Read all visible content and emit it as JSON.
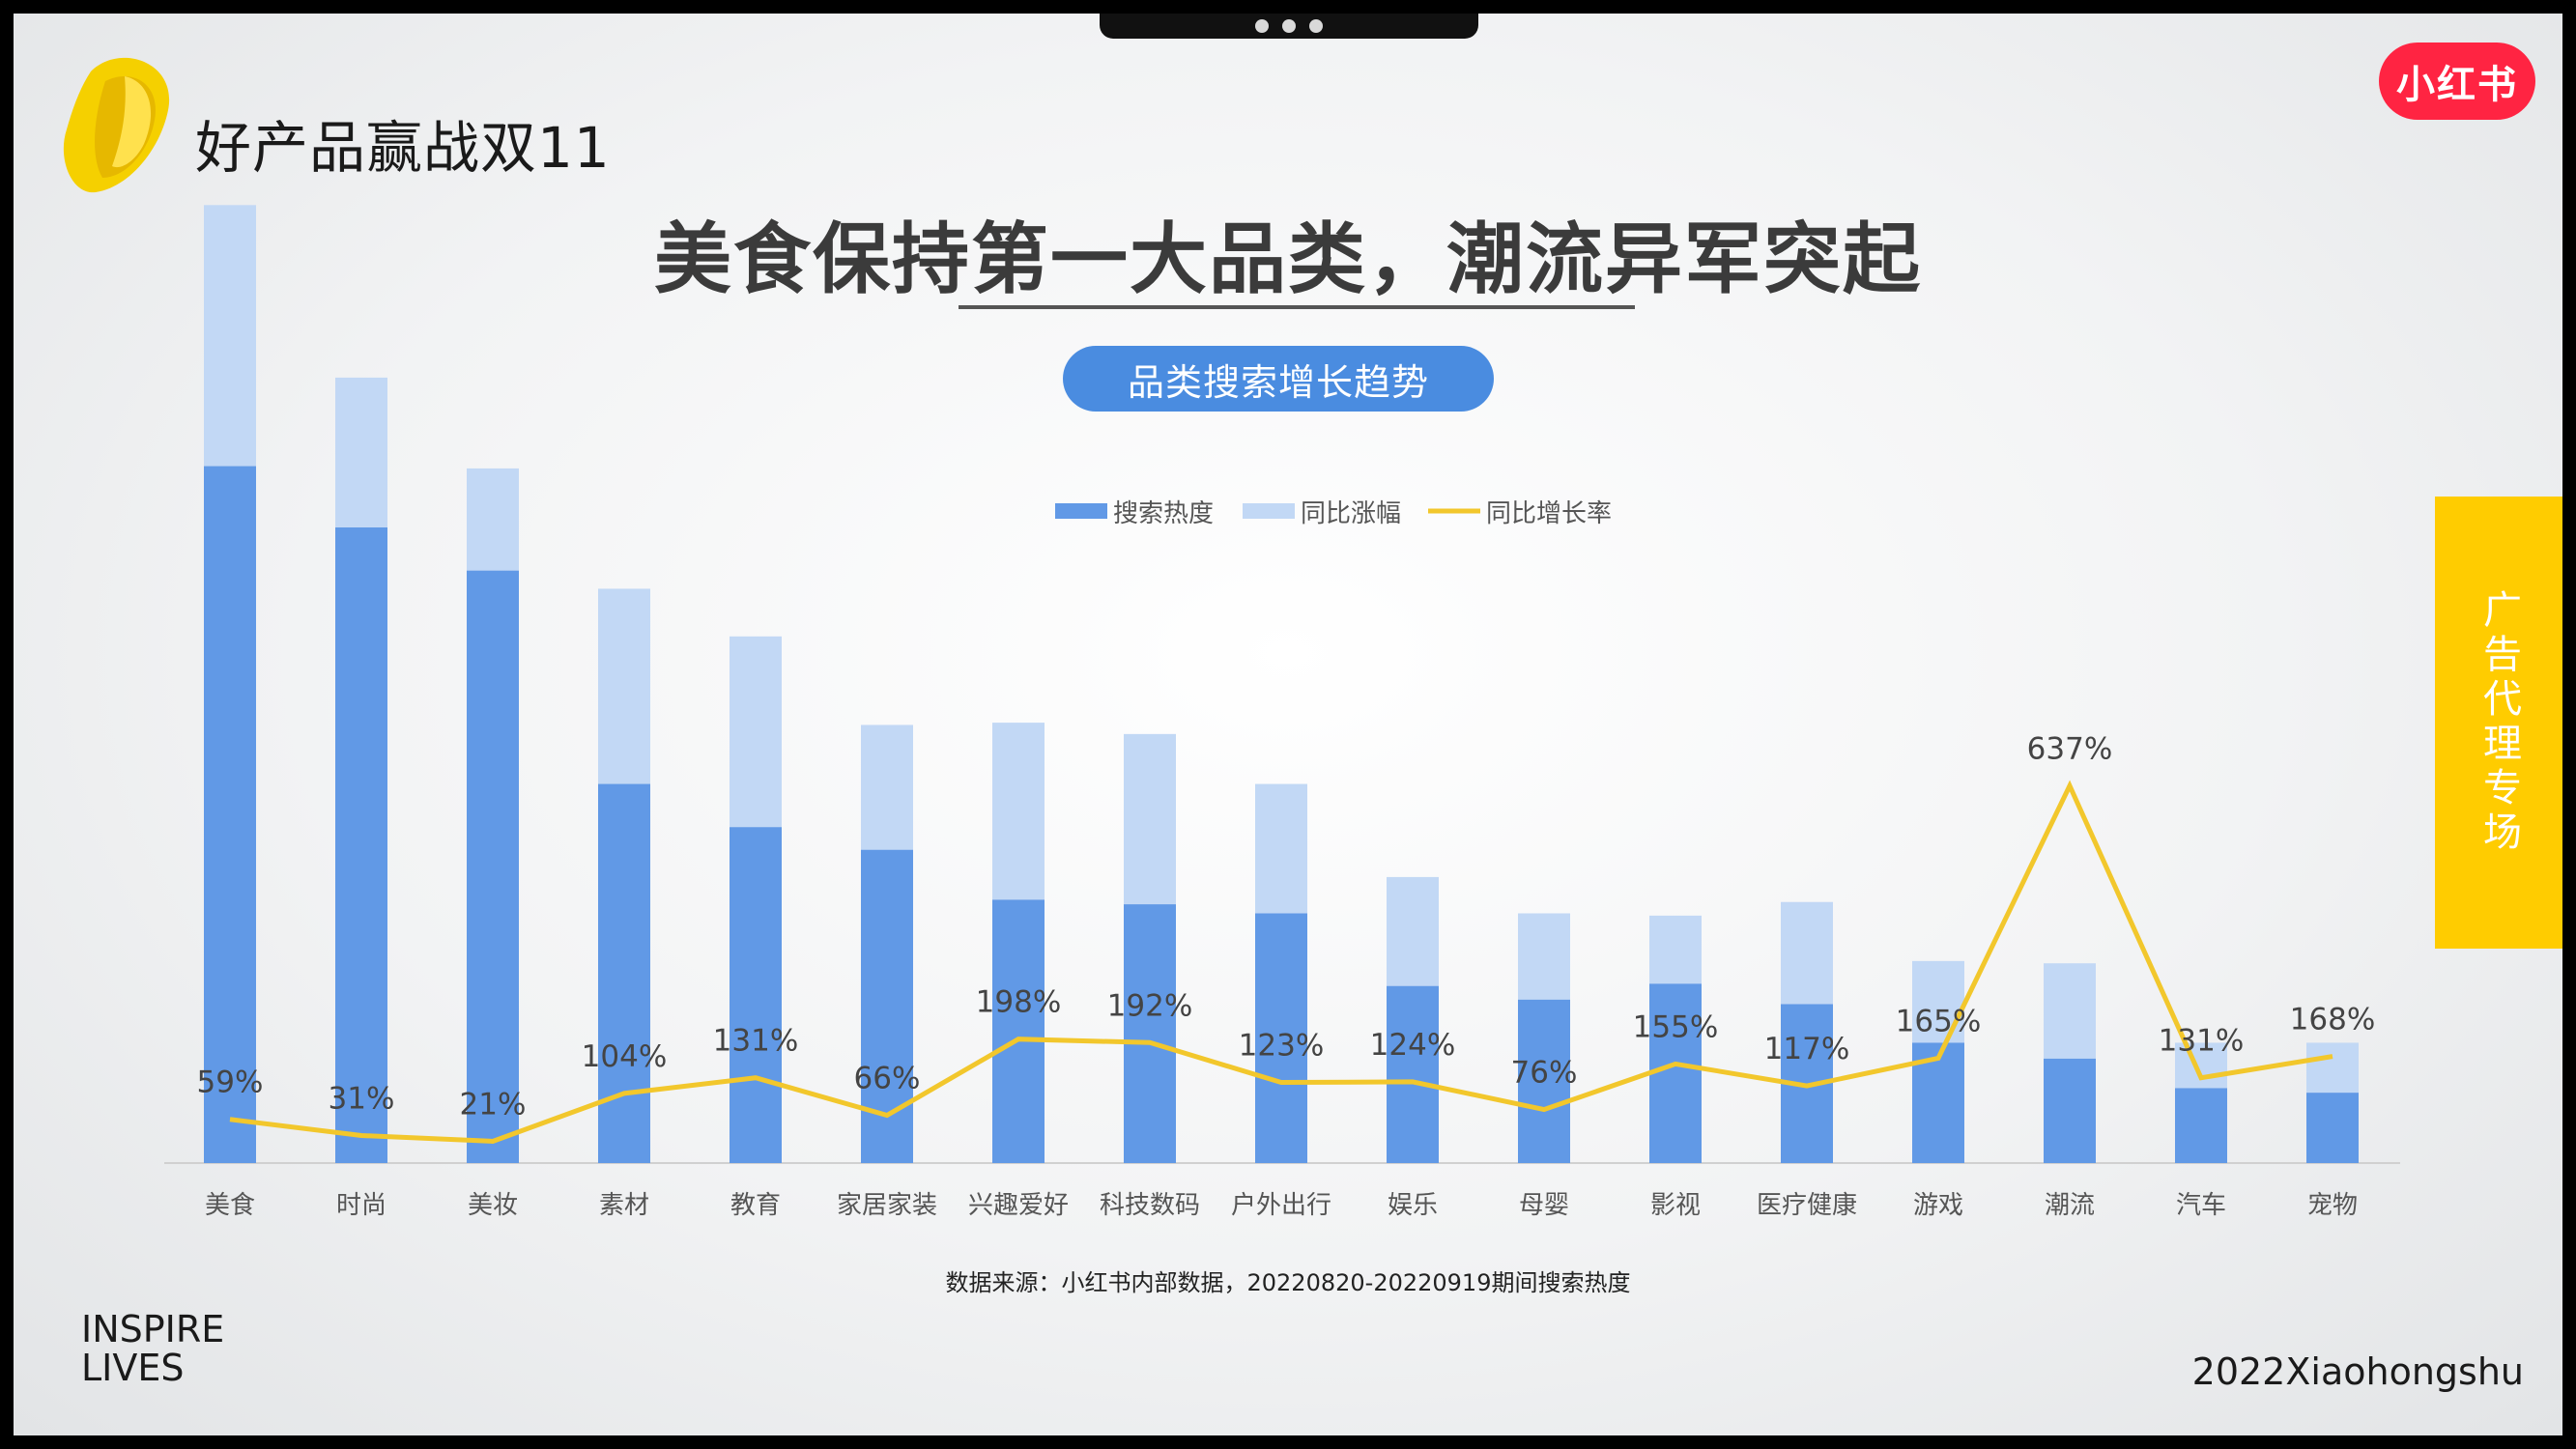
{
  "header": {
    "brand_title": "好产品赢战双11",
    "badge": "小红书",
    "main_title": "美食保持第一大品类，潮流异军突起",
    "chart_title": "品类搜索增长趋势"
  },
  "side_tab": "广告代理专场",
  "footer": {
    "line1": "INSPIRE",
    "line2": "LIVES",
    "right": "2022Xiaohongshu"
  },
  "colors": {
    "bar_dark": "#6199e6",
    "bar_light": "#c2d8f5",
    "line": "#f2c72c",
    "badge": "#ff2442",
    "side_tab": "#ffcc00",
    "pill": "#4a8ce0"
  },
  "chart_data": {
    "type": "bar",
    "subtype": "stacked-bar-with-line",
    "categories": [
      "美食",
      "时尚",
      "美妆",
      "素材",
      "教育",
      "家居家装",
      "兴趣爱好",
      "科技数码",
      "户外出行",
      "娱乐",
      "母婴",
      "影视",
      "医疗健康",
      "游戏",
      "潮流",
      "汽车",
      "宠物"
    ],
    "series": [
      {
        "name": "搜索热度",
        "type": "bar",
        "values": [
          307,
          280,
          261,
          167,
          148,
          138,
          116,
          114,
          110,
          78,
          72,
          79,
          70,
          53,
          46,
          33,
          31
        ]
      },
      {
        "name": "同比涨幅",
        "type": "bar",
        "stack_on": "搜索热度",
        "values": [
          115,
          66,
          45,
          86,
          84,
          55,
          78,
          75,
          57,
          48,
          38,
          30,
          45,
          36,
          42,
          20,
          22
        ]
      },
      {
        "name": "同比增长率",
        "type": "line",
        "unit": "%",
        "values": [
          59,
          31,
          21,
          104,
          131,
          66,
          198,
          192,
          123,
          124,
          76,
          155,
          117,
          165,
          637,
          131,
          168
        ]
      }
    ],
    "data_labels": [
      "59%",
      "31%",
      "21%",
      "104%",
      "131%",
      "66%",
      "198%",
      "192%",
      "123%",
      "124%",
      "76%",
      "155%",
      "117%",
      "165%",
      "637%",
      "131%",
      "168%"
    ],
    "legend_position": "top-center",
    "grid": false,
    "source": "数据来源：小红书内部数据，20220820-20220919期间搜索热度"
  }
}
